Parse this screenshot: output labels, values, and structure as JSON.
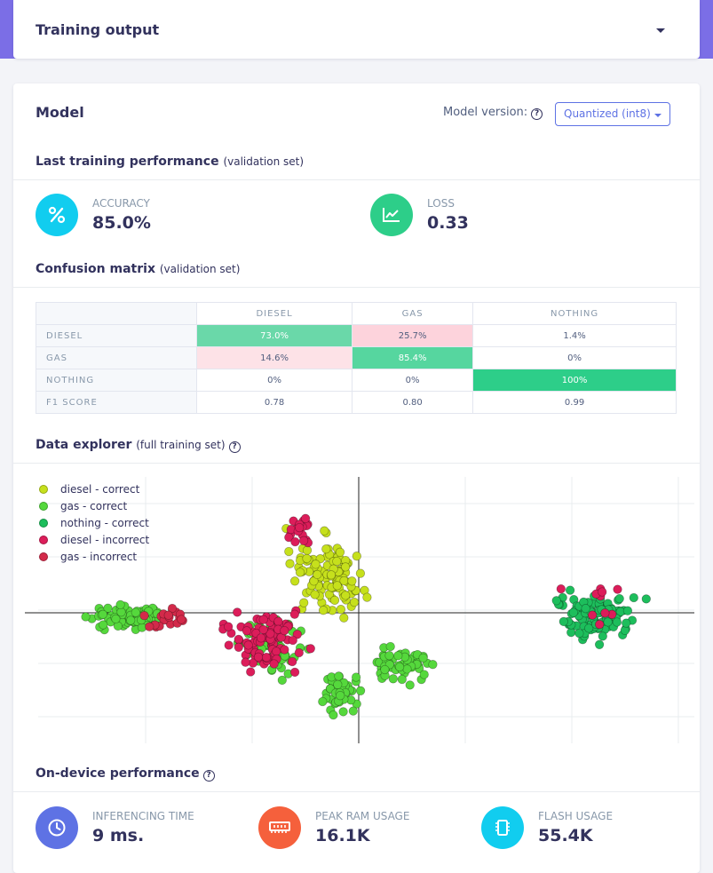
{
  "top_panel": {
    "title": "Training output"
  },
  "model": {
    "title": "Model",
    "version_label": "Model version:",
    "version_value": "Quantized (int8)"
  },
  "last_training": {
    "title": "Last training performance",
    "subtitle": "(validation set)",
    "accuracy_label": "ACCURACY",
    "accuracy_value": "85.0%",
    "loss_label": "LOSS",
    "loss_value": "0.33"
  },
  "confusion": {
    "title": "Confusion matrix",
    "subtitle": "(validation set)",
    "columns": [
      "DIESEL",
      "GAS",
      "NOTHING"
    ],
    "rows": [
      {
        "label": "DIESEL",
        "cells": [
          "73.0%",
          "25.7%",
          "1.4%"
        ]
      },
      {
        "label": "GAS",
        "cells": [
          "14.6%",
          "85.4%",
          "0%"
        ]
      },
      {
        "label": "NOTHING",
        "cells": [
          "0%",
          "0%",
          "100%"
        ]
      },
      {
        "label": "F1 SCORE",
        "cells": [
          "0.78",
          "0.80",
          "0.99"
        ]
      }
    ],
    "colors": {
      "strong_green": "#2dce89",
      "medium_green": "#56d69f",
      "light_green": "#6ad8a9",
      "light_red": "#fdd3dc",
      "light_red2": "#fde2e7"
    }
  },
  "explorer": {
    "title": "Data explorer",
    "subtitle": "(full training set)",
    "legend": [
      {
        "label": "diesel - correct",
        "color": "#c6e01c"
      },
      {
        "label": "gas - correct",
        "color": "#55d83c"
      },
      {
        "label": "nothing - correct",
        "color": "#1dbe5c"
      },
      {
        "label": "diesel - incorrect",
        "color": "#dc1d5a"
      },
      {
        "label": "gas - incorrect",
        "color": "#d32a4a"
      }
    ]
  },
  "on_device": {
    "title": "On-device performance",
    "inferencing_label": "INFERENCING TIME",
    "inferencing_value": "9 ms.",
    "ram_label": "PEAK RAM USAGE",
    "ram_value": "16.1K",
    "flash_label": "FLASH USAGE",
    "flash_value": "55.4K",
    "colors": {
      "inferencing": "#5e72e4",
      "ram": "#f5603c",
      "flash": "#11cdef"
    }
  },
  "icon_colors": {
    "accuracy": "#11cdef",
    "loss": "#2dce89"
  }
}
